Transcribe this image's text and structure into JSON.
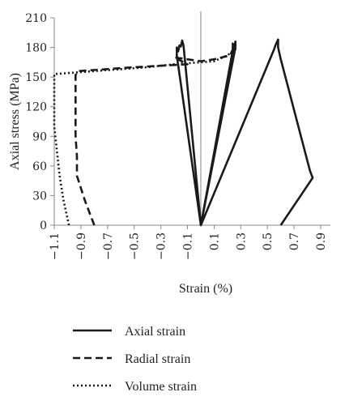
{
  "chart_data": {
    "type": "line",
    "xlabel": "Strain (%)",
    "ylabel": "Axial stress (MPa)",
    "xlim": [
      -1.15,
      0.98
    ],
    "ylim": [
      0,
      210
    ],
    "x_ticks": [
      -1.1,
      -0.9,
      -0.7,
      -0.5,
      -0.3,
      -0.1,
      0.1,
      0.3,
      0.5,
      0.7,
      0.9
    ],
    "x_tick_labels": [
      "−1.1",
      "−0.9",
      "−0.7",
      "−0.5",
      "−0.3",
      "−0.1",
      "0.1",
      "0.3",
      "0.5",
      "0.7",
      "0.9"
    ],
    "y_ticks": [
      0,
      30,
      60,
      90,
      120,
      150,
      180,
      210
    ],
    "y_tick_labels": [
      "0",
      "30",
      "60",
      "90",
      "120",
      "150",
      "180",
      "210"
    ],
    "legend_position": "bottom-left",
    "series": [
      {
        "name": "Axial strain",
        "dash": "solid",
        "x": [
          0.0,
          -0.18,
          -0.18,
          -0.17,
          -0.16,
          -0.15,
          -0.14,
          -0.13,
          0.0,
          0.0,
          0.0,
          0.24,
          0.24,
          0.25,
          0.26,
          0.26,
          0.0,
          0.0,
          0.0,
          0.55,
          0.56,
          0.57,
          0.58,
          0.58,
          0.6,
          0.82,
          0.84,
          0.6
        ],
        "y": [
          0,
          172,
          180,
          176,
          182,
          181,
          187,
          182,
          0,
          5,
          0,
          177,
          184,
          178,
          186,
          180,
          0,
          5,
          0,
          178,
          182,
          185,
          188,
          180,
          168,
          55,
          48,
          0
        ]
      },
      {
        "name": "Radial strain",
        "dash": "dashed",
        "x": [
          -0.8,
          -0.87,
          -0.93,
          -0.93,
          -0.94,
          -0.94,
          -0.94,
          -0.92,
          -0.5,
          -0.1,
          -0.2,
          -0.2,
          0.0,
          0.1,
          0.22,
          0.24,
          0.24
        ],
        "y": [
          0,
          25,
          50,
          70,
          90,
          120,
          152,
          156,
          160,
          163,
          170,
          170,
          166,
          168,
          172,
          178,
          178
        ]
      },
      {
        "name": "Volume strain",
        "dash": "dotted",
        "x": [
          -0.99,
          -1.03,
          -1.06,
          -1.08,
          -1.1,
          -1.1,
          -1.1,
          -0.9,
          -0.4,
          -0.2,
          0.0,
          0.1,
          0.2,
          0.26,
          0.26
        ],
        "y": [
          0,
          25,
          50,
          75,
          100,
          130,
          153,
          155,
          160,
          163,
          165,
          166,
          172,
          178,
          180
        ]
      }
    ]
  }
}
